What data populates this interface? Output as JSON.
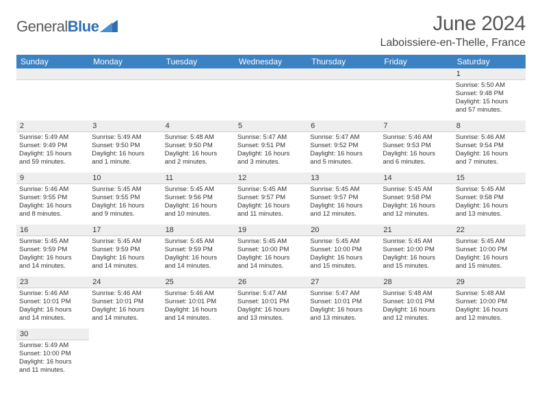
{
  "logo": {
    "word1": "General",
    "word2": "Blue"
  },
  "title": "June 2024",
  "location": "Laboissiere-en-Thelle, France",
  "weekdays": [
    "Sunday",
    "Monday",
    "Tuesday",
    "Wednesday",
    "Thursday",
    "Friday",
    "Saturday"
  ],
  "colors": {
    "header_bg": "#3b82c4",
    "header_text": "#ffffff",
    "daynum_bg": "#eeeeee",
    "week_sep": "#2e6fb4",
    "text": "#333333",
    "title": "#555555",
    "logo_gray": "#5a5a5a",
    "logo_blue": "#2e6fb4"
  },
  "fonts": {
    "title_size": 30,
    "location_size": 16,
    "header_size": 12,
    "daynum_size": 11,
    "info_size": 9.5
  },
  "weeks": [
    [
      null,
      null,
      null,
      null,
      null,
      null,
      {
        "n": "1",
        "sr": "Sunrise: 5:50 AM",
        "ss": "Sunset: 9:48 PM",
        "d1": "Daylight: 15 hours",
        "d2": "and 57 minutes."
      }
    ],
    [
      {
        "n": "2",
        "sr": "Sunrise: 5:49 AM",
        "ss": "Sunset: 9:49 PM",
        "d1": "Daylight: 15 hours",
        "d2": "and 59 minutes."
      },
      {
        "n": "3",
        "sr": "Sunrise: 5:49 AM",
        "ss": "Sunset: 9:50 PM",
        "d1": "Daylight: 16 hours",
        "d2": "and 1 minute."
      },
      {
        "n": "4",
        "sr": "Sunrise: 5:48 AM",
        "ss": "Sunset: 9:50 PM",
        "d1": "Daylight: 16 hours",
        "d2": "and 2 minutes."
      },
      {
        "n": "5",
        "sr": "Sunrise: 5:47 AM",
        "ss": "Sunset: 9:51 PM",
        "d1": "Daylight: 16 hours",
        "d2": "and 3 minutes."
      },
      {
        "n": "6",
        "sr": "Sunrise: 5:47 AM",
        "ss": "Sunset: 9:52 PM",
        "d1": "Daylight: 16 hours",
        "d2": "and 5 minutes."
      },
      {
        "n": "7",
        "sr": "Sunrise: 5:46 AM",
        "ss": "Sunset: 9:53 PM",
        "d1": "Daylight: 16 hours",
        "d2": "and 6 minutes."
      },
      {
        "n": "8",
        "sr": "Sunrise: 5:46 AM",
        "ss": "Sunset: 9:54 PM",
        "d1": "Daylight: 16 hours",
        "d2": "and 7 minutes."
      }
    ],
    [
      {
        "n": "9",
        "sr": "Sunrise: 5:46 AM",
        "ss": "Sunset: 9:55 PM",
        "d1": "Daylight: 16 hours",
        "d2": "and 8 minutes."
      },
      {
        "n": "10",
        "sr": "Sunrise: 5:45 AM",
        "ss": "Sunset: 9:55 PM",
        "d1": "Daylight: 16 hours",
        "d2": "and 9 minutes."
      },
      {
        "n": "11",
        "sr": "Sunrise: 5:45 AM",
        "ss": "Sunset: 9:56 PM",
        "d1": "Daylight: 16 hours",
        "d2": "and 10 minutes."
      },
      {
        "n": "12",
        "sr": "Sunrise: 5:45 AM",
        "ss": "Sunset: 9:57 PM",
        "d1": "Daylight: 16 hours",
        "d2": "and 11 minutes."
      },
      {
        "n": "13",
        "sr": "Sunrise: 5:45 AM",
        "ss": "Sunset: 9:57 PM",
        "d1": "Daylight: 16 hours",
        "d2": "and 12 minutes."
      },
      {
        "n": "14",
        "sr": "Sunrise: 5:45 AM",
        "ss": "Sunset: 9:58 PM",
        "d1": "Daylight: 16 hours",
        "d2": "and 12 minutes."
      },
      {
        "n": "15",
        "sr": "Sunrise: 5:45 AM",
        "ss": "Sunset: 9:58 PM",
        "d1": "Daylight: 16 hours",
        "d2": "and 13 minutes."
      }
    ],
    [
      {
        "n": "16",
        "sr": "Sunrise: 5:45 AM",
        "ss": "Sunset: 9:59 PM",
        "d1": "Daylight: 16 hours",
        "d2": "and 14 minutes."
      },
      {
        "n": "17",
        "sr": "Sunrise: 5:45 AM",
        "ss": "Sunset: 9:59 PM",
        "d1": "Daylight: 16 hours",
        "d2": "and 14 minutes."
      },
      {
        "n": "18",
        "sr": "Sunrise: 5:45 AM",
        "ss": "Sunset: 9:59 PM",
        "d1": "Daylight: 16 hours",
        "d2": "and 14 minutes."
      },
      {
        "n": "19",
        "sr": "Sunrise: 5:45 AM",
        "ss": "Sunset: 10:00 PM",
        "d1": "Daylight: 16 hours",
        "d2": "and 14 minutes."
      },
      {
        "n": "20",
        "sr": "Sunrise: 5:45 AM",
        "ss": "Sunset: 10:00 PM",
        "d1": "Daylight: 16 hours",
        "d2": "and 15 minutes."
      },
      {
        "n": "21",
        "sr": "Sunrise: 5:45 AM",
        "ss": "Sunset: 10:00 PM",
        "d1": "Daylight: 16 hours",
        "d2": "and 15 minutes."
      },
      {
        "n": "22",
        "sr": "Sunrise: 5:45 AM",
        "ss": "Sunset: 10:00 PM",
        "d1": "Daylight: 16 hours",
        "d2": "and 15 minutes."
      }
    ],
    [
      {
        "n": "23",
        "sr": "Sunrise: 5:46 AM",
        "ss": "Sunset: 10:01 PM",
        "d1": "Daylight: 16 hours",
        "d2": "and 14 minutes."
      },
      {
        "n": "24",
        "sr": "Sunrise: 5:46 AM",
        "ss": "Sunset: 10:01 PM",
        "d1": "Daylight: 16 hours",
        "d2": "and 14 minutes."
      },
      {
        "n": "25",
        "sr": "Sunrise: 5:46 AM",
        "ss": "Sunset: 10:01 PM",
        "d1": "Daylight: 16 hours",
        "d2": "and 14 minutes."
      },
      {
        "n": "26",
        "sr": "Sunrise: 5:47 AM",
        "ss": "Sunset: 10:01 PM",
        "d1": "Daylight: 16 hours",
        "d2": "and 13 minutes."
      },
      {
        "n": "27",
        "sr": "Sunrise: 5:47 AM",
        "ss": "Sunset: 10:01 PM",
        "d1": "Daylight: 16 hours",
        "d2": "and 13 minutes."
      },
      {
        "n": "28",
        "sr": "Sunrise: 5:48 AM",
        "ss": "Sunset: 10:01 PM",
        "d1": "Daylight: 16 hours",
        "d2": "and 12 minutes."
      },
      {
        "n": "29",
        "sr": "Sunrise: 5:48 AM",
        "ss": "Sunset: 10:00 PM",
        "d1": "Daylight: 16 hours",
        "d2": "and 12 minutes."
      }
    ],
    [
      {
        "n": "30",
        "sr": "Sunrise: 5:49 AM",
        "ss": "Sunset: 10:00 PM",
        "d1": "Daylight: 16 hours",
        "d2": "and 11 minutes."
      },
      null,
      null,
      null,
      null,
      null,
      null
    ]
  ]
}
